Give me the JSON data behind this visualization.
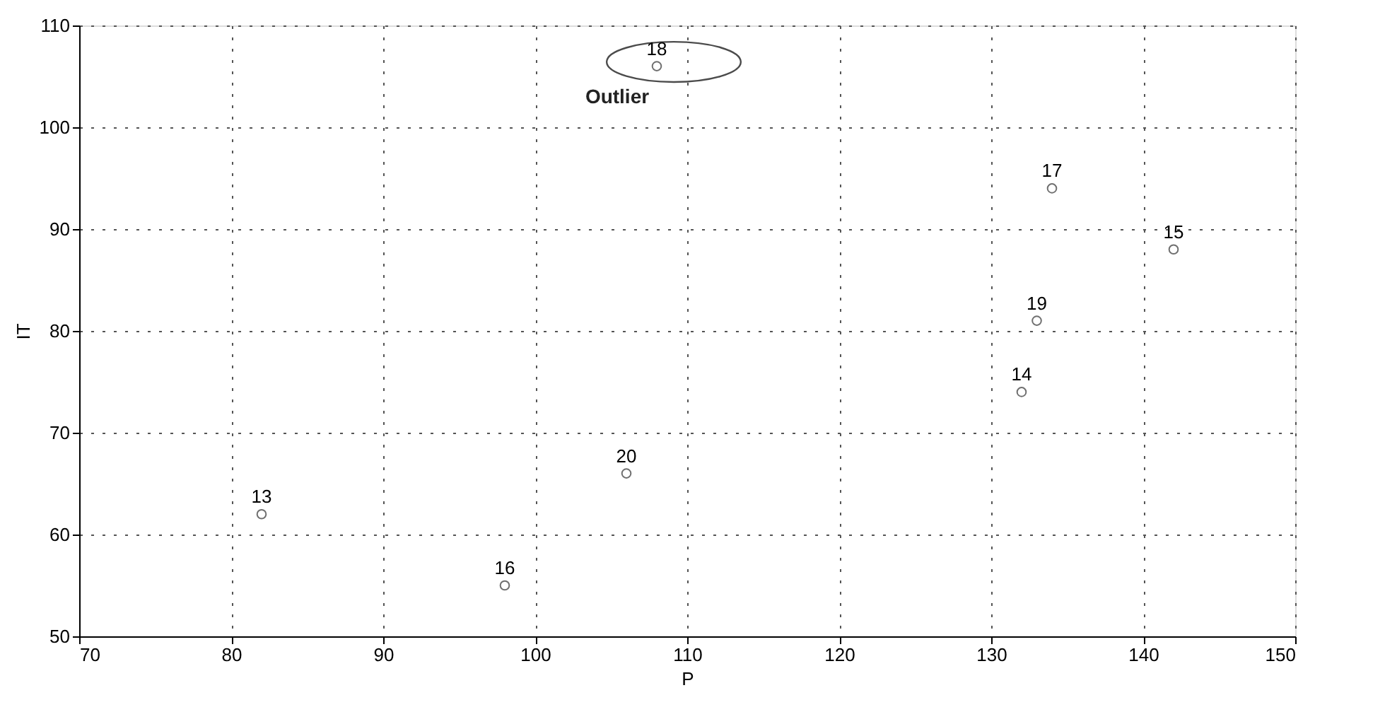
{
  "chart_data": {
    "type": "scatter",
    "xlabel": "P",
    "ylabel": "IT",
    "x": [
      82,
      98,
      106,
      108,
      132,
      133,
      134,
      142
    ],
    "series": [
      {
        "color": "#333333",
        "values": [
          62,
          55,
          66,
          106,
          74,
          81,
          94,
          88
        ]
      }
    ],
    "xlim": [
      70,
      150
    ],
    "xticks": [
      70,
      80,
      90,
      100,
      110,
      120,
      130,
      140,
      150
    ],
    "ylim": [
      50,
      110
    ],
    "yticks": [
      50,
      60,
      70,
      80,
      90,
      100,
      110
    ],
    "grid": true,
    "marker": "circle",
    "annotations": [
      {
        "text": "13",
        "x": 82,
        "y": 62
      },
      {
        "text": "16",
        "x": 98,
        "y": 55
      },
      {
        "text": "20",
        "x": 106,
        "y": 66
      },
      {
        "text": "18",
        "x": 108,
        "y": 106
      },
      {
        "text": "14",
        "x": 132,
        "y": 74
      },
      {
        "text": "19",
        "x": 133,
        "y": 81
      },
      {
        "text": "17",
        "x": 134,
        "y": 94
      },
      {
        "text": "15",
        "x": 142,
        "y": 88
      },
      {
        "text": "Outlier",
        "x": 108,
        "y": 106
      }
    ]
  }
}
